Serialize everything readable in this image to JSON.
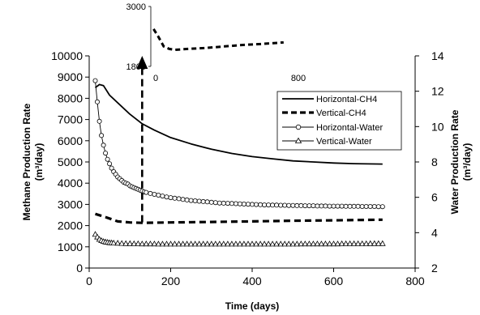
{
  "chart_data": [
    {
      "type": "line",
      "xlabel": "Time (days)",
      "ylabel": "Methane Production Rate",
      "ylabel_unit": "(m³/day)",
      "y2label": "Water Production Rate",
      "y2label_unit": "(m³/day)",
      "xlim": [
        0,
        800
      ],
      "ylim": [
        0,
        10000
      ],
      "y2lim": [
        2,
        14
      ],
      "x_ticks": [
        0,
        200,
        400,
        600,
        800
      ],
      "y_ticks": [
        0,
        1000,
        2000,
        3000,
        4000,
        5000,
        6000,
        7000,
        8000,
        9000,
        10000
      ],
      "y2_ticks": [
        2,
        4,
        6,
        8,
        10,
        12,
        14
      ],
      "legend_position": "right",
      "series": [
        {
          "name": "Horizontal-CH4",
          "axis": "left",
          "style": "solid",
          "marker": "none",
          "points": [
            [
              15,
              8500
            ],
            [
              25,
              8650
            ],
            [
              35,
              8600
            ],
            [
              50,
              8150
            ],
            [
              75,
              7700
            ],
            [
              100,
              7250
            ],
            [
              130,
              6800
            ],
            [
              160,
              6500
            ],
            [
              200,
              6150
            ],
            [
              250,
              5850
            ],
            [
              300,
              5600
            ],
            [
              350,
              5400
            ],
            [
              400,
              5250
            ],
            [
              450,
              5150
            ],
            [
              500,
              5050
            ],
            [
              550,
              5000
            ],
            [
              600,
              4950
            ],
            [
              650,
              4920
            ],
            [
              720,
              4900
            ]
          ]
        },
        {
          "name": "Vertical-CH4",
          "axis": "left",
          "style": "dashed",
          "marker": "none",
          "points": [
            [
              15,
              2550
            ],
            [
              40,
              2400
            ],
            [
              70,
              2200
            ],
            [
              100,
              2150
            ],
            [
              130,
              2130
            ],
            [
              200,
              2150
            ],
            [
              300,
              2170
            ],
            [
              400,
              2200
            ],
            [
              500,
              2230
            ],
            [
              600,
              2250
            ],
            [
              720,
              2280
            ]
          ]
        },
        {
          "name": "Horizontal-Water",
          "axis": "right",
          "style": "solid",
          "marker": "circle",
          "points": [
            [
              15,
              12.6
            ],
            [
              20,
              11.4
            ],
            [
              25,
              10.3
            ],
            [
              30,
              9.5
            ],
            [
              35,
              8.95
            ],
            [
              40,
              8.5
            ],
            [
              45,
              8.15
            ],
            [
              50,
              7.9
            ],
            [
              55,
              7.65
            ],
            [
              60,
              7.45
            ],
            [
              65,
              7.3
            ],
            [
              70,
              7.15
            ],
            [
              75,
              7.05
            ],
            [
              80,
              6.95
            ],
            [
              85,
              6.85
            ],
            [
              90,
              6.8
            ],
            [
              95,
              6.75
            ],
            [
              100,
              6.65
            ],
            [
              105,
              6.6
            ],
            [
              110,
              6.55
            ],
            [
              115,
              6.5
            ],
            [
              120,
              6.45
            ],
            [
              125,
              6.4
            ],
            [
              130,
              6.35
            ],
            [
              135,
              6.3
            ],
            [
              140,
              6.28
            ],
            [
              150,
              6.22
            ],
            [
              160,
              6.17
            ],
            [
              170,
              6.12
            ],
            [
              180,
              6.07
            ],
            [
              190,
              6.02
            ],
            [
              200,
              5.98
            ],
            [
              210,
              5.95
            ],
            [
              220,
              5.92
            ],
            [
              230,
              5.88
            ],
            [
              240,
              5.85
            ],
            [
              250,
              5.82
            ],
            [
              260,
              5.8
            ],
            [
              270,
              5.78
            ],
            [
              280,
              5.76
            ],
            [
              290,
              5.74
            ],
            [
              300,
              5.72
            ],
            [
              310,
              5.7
            ],
            [
              320,
              5.68
            ],
            [
              330,
              5.67
            ],
            [
              340,
              5.66
            ],
            [
              350,
              5.65
            ],
            [
              360,
              5.64
            ],
            [
              370,
              5.63
            ],
            [
              380,
              5.62
            ],
            [
              390,
              5.61
            ],
            [
              400,
              5.6
            ],
            [
              410,
              5.59
            ],
            [
              420,
              5.58
            ],
            [
              430,
              5.57
            ],
            [
              440,
              5.57
            ],
            [
              450,
              5.56
            ],
            [
              460,
              5.56
            ],
            [
              470,
              5.55
            ],
            [
              480,
              5.55
            ],
            [
              490,
              5.54
            ],
            [
              500,
              5.54
            ],
            [
              510,
              5.53
            ],
            [
              520,
              5.53
            ],
            [
              530,
              5.52
            ],
            [
              540,
              5.52
            ],
            [
              550,
              5.52
            ],
            [
              560,
              5.51
            ],
            [
              570,
              5.51
            ],
            [
              580,
              5.51
            ],
            [
              590,
              5.5
            ],
            [
              600,
              5.5
            ],
            [
              610,
              5.5
            ],
            [
              620,
              5.5
            ],
            [
              630,
              5.49
            ],
            [
              640,
              5.49
            ],
            [
              650,
              5.49
            ],
            [
              660,
              5.49
            ],
            [
              670,
              5.48
            ],
            [
              680,
              5.48
            ],
            [
              690,
              5.48
            ],
            [
              700,
              5.48
            ],
            [
              710,
              5.47
            ],
            [
              720,
              5.47
            ]
          ]
        },
        {
          "name": "Vertical-Water",
          "axis": "right",
          "style": "solid",
          "marker": "triangle",
          "points": [
            [
              15,
              3.9
            ],
            [
              20,
              3.75
            ],
            [
              25,
              3.62
            ],
            [
              30,
              3.55
            ],
            [
              35,
              3.5
            ],
            [
              40,
              3.47
            ],
            [
              45,
              3.45
            ],
            [
              50,
              3.43
            ],
            [
              55,
              3.42
            ],
            [
              60,
              3.41
            ],
            [
              70,
              3.4
            ],
            [
              80,
              3.39
            ],
            [
              90,
              3.38
            ],
            [
              100,
              3.38
            ],
            [
              110,
              3.37
            ],
            [
              120,
              3.37
            ],
            [
              130,
              3.36
            ],
            [
              140,
              3.36
            ],
            [
              150,
              3.36
            ],
            [
              160,
              3.36
            ],
            [
              170,
              3.35
            ],
            [
              180,
              3.35
            ],
            [
              190,
              3.35
            ],
            [
              200,
              3.35
            ],
            [
              210,
              3.35
            ],
            [
              220,
              3.35
            ],
            [
              230,
              3.35
            ],
            [
              240,
              3.35
            ],
            [
              250,
              3.35
            ],
            [
              260,
              3.35
            ],
            [
              270,
              3.35
            ],
            [
              280,
              3.35
            ],
            [
              290,
              3.35
            ],
            [
              300,
              3.35
            ],
            [
              310,
              3.35
            ],
            [
              320,
              3.35
            ],
            [
              330,
              3.35
            ],
            [
              340,
              3.35
            ],
            [
              350,
              3.35
            ],
            [
              360,
              3.35
            ],
            [
              370,
              3.35
            ],
            [
              380,
              3.35
            ],
            [
              390,
              3.35
            ],
            [
              400,
              3.35
            ],
            [
              410,
              3.35
            ],
            [
              420,
              3.35
            ],
            [
              430,
              3.35
            ],
            [
              440,
              3.35
            ],
            [
              450,
              3.35
            ],
            [
              460,
              3.35
            ],
            [
              470,
              3.35
            ],
            [
              480,
              3.35
            ],
            [
              490,
              3.35
            ],
            [
              500,
              3.35
            ],
            [
              510,
              3.35
            ],
            [
              520,
              3.36
            ],
            [
              530,
              3.36
            ],
            [
              540,
              3.36
            ],
            [
              550,
              3.36
            ],
            [
              560,
              3.36
            ],
            [
              570,
              3.36
            ],
            [
              580,
              3.36
            ],
            [
              590,
              3.36
            ],
            [
              600,
              3.36
            ],
            [
              610,
              3.36
            ],
            [
              620,
              3.37
            ],
            [
              630,
              3.37
            ],
            [
              640,
              3.37
            ],
            [
              650,
              3.37
            ],
            [
              660,
              3.37
            ],
            [
              670,
              3.37
            ],
            [
              680,
              3.37
            ],
            [
              690,
              3.38
            ],
            [
              700,
              3.38
            ],
            [
              710,
              3.38
            ],
            [
              720,
              3.38
            ]
          ]
        }
      ],
      "annotations": [
        {
          "type": "arrow",
          "style": "dashed",
          "from": [
            130,
            2150
          ],
          "to": [
            130,
            10000
          ]
        }
      ]
    },
    {
      "type": "line",
      "role": "inset",
      "xlim": [
        0,
        800
      ],
      "ylim": [
        1800,
        3000
      ],
      "x_ticks": [
        0,
        800
      ],
      "y_ticks": [
        1800,
        3000
      ],
      "series": [
        {
          "name": "Vertical-CH4",
          "style": "dashed",
          "points": [
            [
              15,
              2550
            ],
            [
              40,
              2400
            ],
            [
              70,
              2200
            ],
            [
              100,
              2150
            ],
            [
              130,
              2130
            ],
            [
              200,
              2150
            ],
            [
              300,
              2170
            ],
            [
              400,
              2200
            ],
            [
              500,
              2230
            ],
            [
              600,
              2250
            ],
            [
              720,
              2280
            ]
          ]
        }
      ]
    }
  ]
}
